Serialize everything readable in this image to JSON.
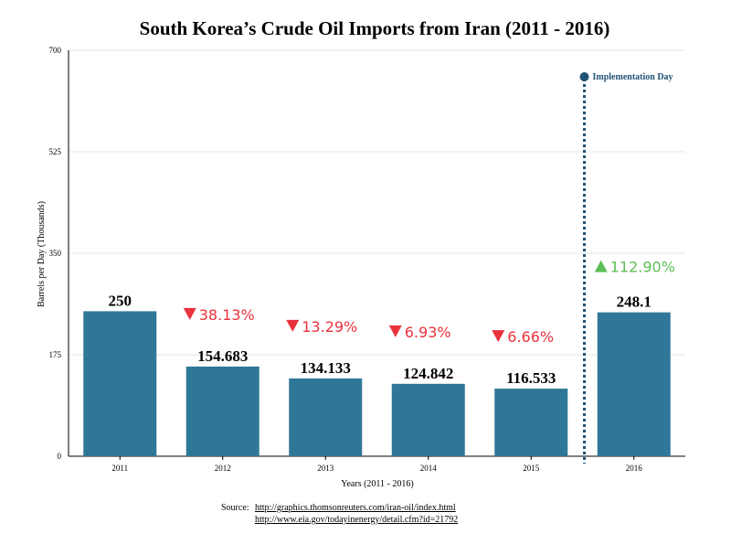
{
  "chart_data": {
    "type": "bar",
    "title": "South Korea’s Crude Oil Imports from Iran (2011 - 2016)",
    "xlabel": "Years (2011 - 2016)",
    "ylabel": "Barrels per Day (Thousands)",
    "ylim": [
      0,
      700
    ],
    "yticks": [
      "0",
      "175",
      "350",
      "525",
      "700"
    ],
    "grid": true,
    "categories": [
      "2011",
      "2012",
      "2013",
      "2014",
      "2015",
      "2016"
    ],
    "values": [
      250,
      154.683,
      134.133,
      124.842,
      116.533,
      248.1
    ],
    "value_labels": [
      "250",
      "154.683",
      "134.133",
      "124.842",
      "116.533",
      "248.1"
    ],
    "bar_color": "#2f7798",
    "changes": [
      {
        "category": "2012",
        "direction": "down",
        "text": "38.13%",
        "color": "#e8323c"
      },
      {
        "category": "2013",
        "direction": "down",
        "text": "13.29%",
        "color": "#e8323c"
      },
      {
        "category": "2014",
        "direction": "down",
        "text": "6.93%",
        "color": "#e8323c"
      },
      {
        "category": "2015",
        "direction": "down",
        "text": "6.66%",
        "color": "#e8323c"
      },
      {
        "category": "2016",
        "direction": "up",
        "text": "112.90%",
        "color": "#5cbf55"
      }
    ],
    "annotation": {
      "label": "Implementation Day",
      "between": [
        "2015",
        "2016"
      ],
      "color": "#1f5375"
    }
  },
  "source": {
    "label": "Source:",
    "links": [
      "http://graphics.thomsonreuters.com/iran-oil/index.html",
      "http://www.eia.gov/todayinenergy/detail.cfm?id=21792"
    ]
  }
}
